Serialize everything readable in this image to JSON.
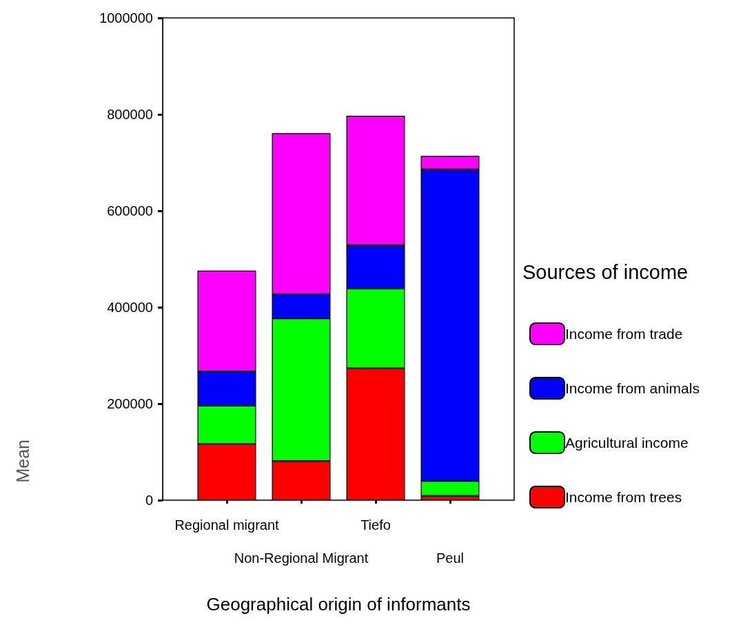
{
  "chart_data": {
    "type": "bar",
    "stacked": true,
    "xlabel": "Geographical origin of informants",
    "ylabel": "Mean",
    "legend_title": "Sources of income",
    "categories": [
      "Regional migrant",
      "Non-Regional Migrant",
      "Tiefo",
      "Peul"
    ],
    "series": [
      {
        "name": "Income from trees",
        "color": "#ff0000",
        "values": [
          117000,
          81000,
          274000,
          9000
        ]
      },
      {
        "name": "Agricultural income",
        "color": "#00ff00",
        "values": [
          79000,
          296000,
          165000,
          31000
        ]
      },
      {
        "name": "Income from animals",
        "color": "#0000ff",
        "values": [
          71000,
          51000,
          90000,
          646000
        ]
      },
      {
        "name": "Income from trade",
        "color": "#ff00ff",
        "values": [
          209000,
          333000,
          268000,
          28000
        ]
      }
    ],
    "ylim": [
      0,
      1000000
    ],
    "yticks": [
      0,
      200000,
      400000,
      600000,
      800000,
      1000000
    ],
    "grid": false,
    "legend": "right"
  }
}
